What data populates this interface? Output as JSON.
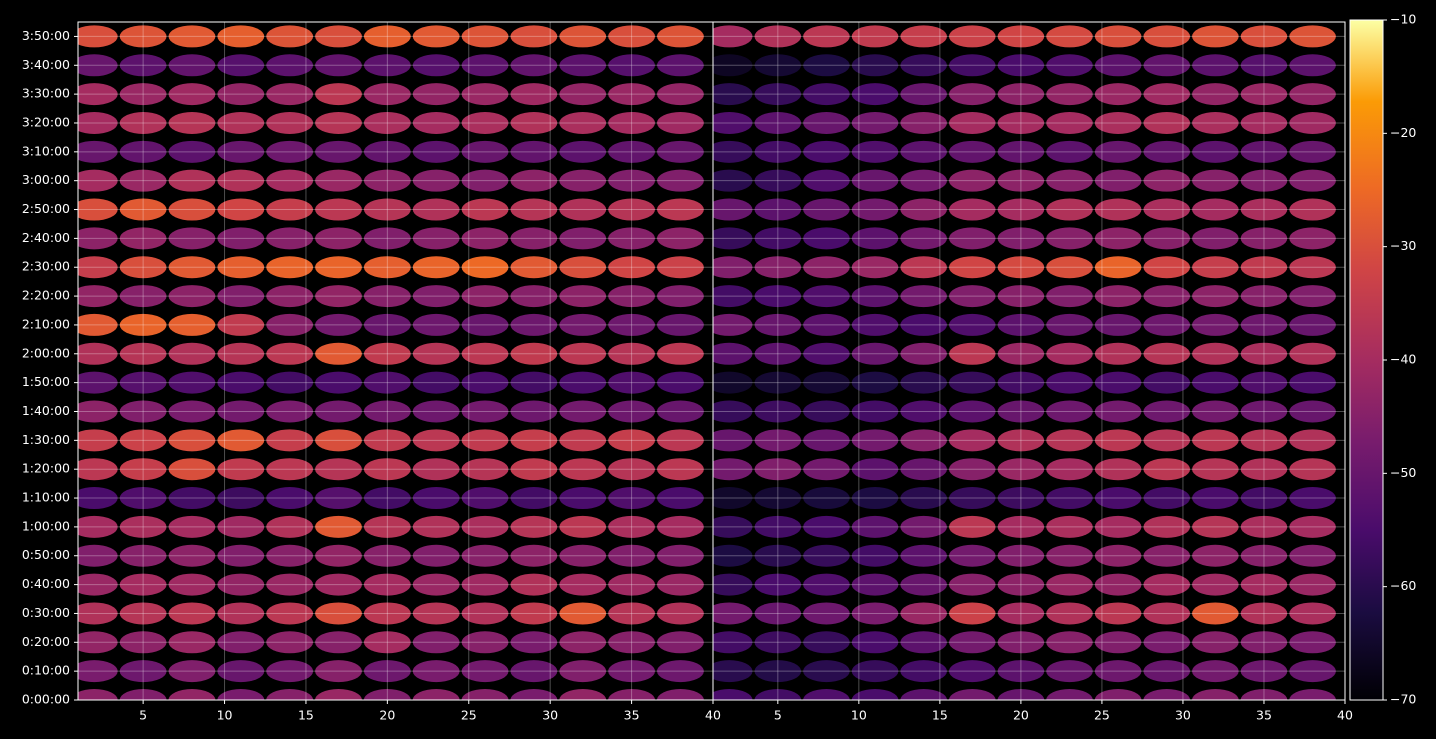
{
  "chart_data": {
    "type": "heatmap",
    "colormap": "inferno",
    "grid": true,
    "vlim": [
      -70,
      -10
    ],
    "cticks": [
      {
        "value": -70,
        "label": "−70"
      },
      {
        "value": -60,
        "label": "−60"
      },
      {
        "value": -50,
        "label": "−50"
      },
      {
        "value": -40,
        "label": "−40"
      },
      {
        "value": -30,
        "label": "−30"
      },
      {
        "value": -20,
        "label": "−20"
      },
      {
        "value": -10,
        "label": "−10"
      }
    ],
    "y": [
      0,
      600,
      1200,
      1800,
      2400,
      3000,
      3600,
      4200,
      4800,
      5400,
      6000,
      6600,
      7200,
      7800,
      8400,
      9000,
      9600,
      10200,
      10800,
      11400,
      12000,
      12600,
      13200,
      13800
    ],
    "ylim": [
      0,
      14100
    ],
    "yticks": [
      {
        "value": 0,
        "label": "0:00:00"
      },
      {
        "value": 600,
        "label": "0:10:00"
      },
      {
        "value": 1200,
        "label": "0:20:00"
      },
      {
        "value": 1800,
        "label": "0:30:00"
      },
      {
        "value": 2400,
        "label": "0:40:00"
      },
      {
        "value": 3000,
        "label": "0:50:00"
      },
      {
        "value": 3600,
        "label": "1:00:00"
      },
      {
        "value": 4200,
        "label": "1:10:00"
      },
      {
        "value": 4800,
        "label": "1:20:00"
      },
      {
        "value": 5400,
        "label": "1:30:00"
      },
      {
        "value": 6000,
        "label": "1:40:00"
      },
      {
        "value": 6600,
        "label": "1:50:00"
      },
      {
        "value": 7200,
        "label": "2:00:00"
      },
      {
        "value": 7800,
        "label": "2:10:00"
      },
      {
        "value": 8400,
        "label": "2:20:00"
      },
      {
        "value": 9000,
        "label": "2:30:00"
      },
      {
        "value": 9600,
        "label": "2:40:00"
      },
      {
        "value": 10200,
        "label": "2:50:00"
      },
      {
        "value": 10800,
        "label": "3:00:00"
      },
      {
        "value": 11400,
        "label": "3:10:00"
      },
      {
        "value": 12000,
        "label": "3:20:00"
      },
      {
        "value": 12600,
        "label": "3:30:00"
      },
      {
        "value": 13200,
        "label": "3:40:00"
      },
      {
        "value": 13800,
        "label": "3:50:00"
      }
    ],
    "panels": [
      {
        "x": [
          2,
          5,
          8,
          11,
          14,
          17,
          20,
          23,
          26,
          29,
          32,
          35,
          38
        ],
        "xlim": [
          1,
          40
        ],
        "xticks": [
          5,
          10,
          15,
          20,
          25,
          30,
          35,
          40
        ],
        "values": [
          [
            -44,
            -46,
            -43,
            -47,
            -45,
            -42,
            -46,
            -44,
            -45,
            -47,
            -43,
            -45,
            -46
          ],
          [
            -47,
            -49,
            -46,
            -50,
            -48,
            -45,
            -49,
            -47,
            -48,
            -50,
            -46,
            -48,
            -49
          ],
          [
            -43,
            -44,
            -42,
            -46,
            -44,
            -45,
            -40,
            -46,
            -45,
            -47,
            -44,
            -45,
            -46
          ],
          [
            -38,
            -37,
            -36,
            -38,
            -36,
            -30,
            -36,
            -37,
            -38,
            -35,
            -28,
            -37,
            -38
          ],
          [
            -42,
            -40,
            -41,
            -43,
            -42,
            -41,
            -40,
            -42,
            -41,
            -38,
            -40,
            -41,
            -42
          ],
          [
            -46,
            -45,
            -44,
            -46,
            -45,
            -43,
            -45,
            -46,
            -45,
            -44,
            -45,
            -46,
            -46
          ],
          [
            -40,
            -39,
            -40,
            -41,
            -38,
            -28,
            -37,
            -38,
            -39,
            -37,
            -36,
            -39,
            -40
          ],
          [
            -55,
            -54,
            -56,
            -57,
            -55,
            -53,
            -56,
            -55,
            -54,
            -56,
            -55,
            -54,
            -55
          ],
          [
            -36,
            -34,
            -30,
            -35,
            -36,
            -37,
            -36,
            -38,
            -37,
            -35,
            -36,
            -37,
            -36
          ],
          [
            -34,
            -33,
            -30,
            -28,
            -34,
            -30,
            -35,
            -36,
            -35,
            -34,
            -35,
            -34,
            -36
          ],
          [
            -44,
            -46,
            -47,
            -48,
            -47,
            -48,
            -48,
            -49,
            -48,
            -49,
            -48,
            -49,
            -50
          ],
          [
            -52,
            -53,
            -54,
            -55,
            -56,
            -55,
            -54,
            -56,
            -55,
            -56,
            -55,
            -54,
            -55
          ],
          [
            -38,
            -37,
            -38,
            -37,
            -36,
            -28,
            -35,
            -37,
            -36,
            -35,
            -36,
            -37,
            -36
          ],
          [
            -28,
            -26,
            -27,
            -35,
            -45,
            -48,
            -50,
            -49,
            -50,
            -49,
            -48,
            -49,
            -50
          ],
          [
            -43,
            -45,
            -44,
            -46,
            -44,
            -43,
            -45,
            -46,
            -44,
            -45,
            -44,
            -45,
            -46
          ],
          [
            -34,
            -30,
            -28,
            -27,
            -26,
            -26,
            -27,
            -26,
            -25,
            -28,
            -30,
            -32,
            -33
          ],
          [
            -44,
            -43,
            -45,
            -46,
            -45,
            -44,
            -46,
            -45,
            -44,
            -45,
            -46,
            -45,
            -44
          ],
          [
            -30,
            -28,
            -30,
            -32,
            -34,
            -36,
            -37,
            -38,
            -36,
            -37,
            -38,
            -37,
            -36
          ],
          [
            -40,
            -42,
            -38,
            -38,
            -40,
            -42,
            -44,
            -45,
            -46,
            -44,
            -45,
            -46,
            -46
          ],
          [
            -50,
            -51,
            -52,
            -50,
            -49,
            -50,
            -51,
            -52,
            -50,
            -51,
            -52,
            -51,
            -50
          ],
          [
            -40,
            -38,
            -37,
            -38,
            -38,
            -37,
            -39,
            -40,
            -39,
            -38,
            -39,
            -40,
            -41
          ],
          [
            -40,
            -42,
            -41,
            -43,
            -42,
            -36,
            -42,
            -43,
            -42,
            -41,
            -43,
            -42,
            -43
          ],
          [
            -50,
            -52,
            -51,
            -53,
            -52,
            -51,
            -52,
            -53,
            -52,
            -51,
            -52,
            -53,
            -52
          ],
          [
            -30,
            -29,
            -28,
            -27,
            -29,
            -30,
            -27,
            -28,
            -29,
            -30,
            -29,
            -30,
            -29
          ]
        ]
      },
      {
        "x": [
          2,
          5,
          8,
          11,
          14,
          17,
          20,
          23,
          26,
          29,
          32,
          35,
          38
        ],
        "xlim": [
          1,
          40
        ],
        "xticks": [
          5,
          10,
          15,
          20,
          25,
          30,
          35,
          40
        ],
        "values": [
          [
            -55,
            -56,
            -54,
            -55,
            -52,
            -48,
            -50,
            -48,
            -46,
            -47,
            -45,
            -46,
            -47
          ],
          [
            -60,
            -61,
            -60,
            -58,
            -56,
            -54,
            -52,
            -50,
            -49,
            -50,
            -48,
            -49,
            -50
          ],
          [
            -56,
            -57,
            -58,
            -55,
            -52,
            -48,
            -46,
            -45,
            -46,
            -47,
            -45,
            -46,
            -47
          ],
          [
            -48,
            -50,
            -49,
            -47,
            -42,
            -33,
            -40,
            -38,
            -36,
            -38,
            -28,
            -38,
            -39
          ],
          [
            -58,
            -55,
            -54,
            -52,
            -50,
            -45,
            -44,
            -42,
            -43,
            -40,
            -41,
            -40,
            -42
          ],
          [
            -62,
            -60,
            -58,
            -56,
            -52,
            -48,
            -46,
            -45,
            -44,
            -45,
            -44,
            -45,
            -46
          ],
          [
            -58,
            -56,
            -55,
            -52,
            -48,
            -36,
            -40,
            -39,
            -40,
            -38,
            -37,
            -39,
            -40
          ],
          [
            -65,
            -64,
            -63,
            -62,
            -60,
            -58,
            -57,
            -56,
            -55,
            -56,
            -55,
            -56,
            -55
          ],
          [
            -48,
            -46,
            -48,
            -52,
            -50,
            -45,
            -42,
            -40,
            -38,
            -36,
            -37,
            -38,
            -37
          ],
          [
            -50,
            -48,
            -50,
            -48,
            -45,
            -40,
            -38,
            -37,
            -36,
            -37,
            -36,
            -37,
            -38
          ],
          [
            -58,
            -57,
            -58,
            -56,
            -54,
            -52,
            -50,
            -49,
            -48,
            -49,
            -48,
            -49,
            -50
          ],
          [
            -65,
            -64,
            -64,
            -62,
            -60,
            -58,
            -56,
            -55,
            -55,
            -56,
            -55,
            -54,
            -55
          ],
          [
            -52,
            -52,
            -54,
            -50,
            -46,
            -36,
            -42,
            -40,
            -38,
            -37,
            -38,
            -39,
            -38
          ],
          [
            -48,
            -50,
            -52,
            -54,
            -55,
            -54,
            -52,
            -50,
            -50,
            -49,
            -48,
            -49,
            -50
          ],
          [
            -56,
            -55,
            -54,
            -52,
            -48,
            -46,
            -45,
            -46,
            -44,
            -45,
            -44,
            -45,
            -46
          ],
          [
            -46,
            -45,
            -44,
            -42,
            -36,
            -32,
            -31,
            -30,
            -26,
            -32,
            -34,
            -35,
            -36
          ],
          [
            -58,
            -56,
            -55,
            -52,
            -48,
            -46,
            -46,
            -45,
            -44,
            -45,
            -46,
            -45,
            -44
          ],
          [
            -50,
            -52,
            -50,
            -48,
            -44,
            -40,
            -40,
            -38,
            -38,
            -39,
            -40,
            -39,
            -38
          ],
          [
            -60,
            -58,
            -54,
            -50,
            -48,
            -44,
            -44,
            -45,
            -46,
            -44,
            -45,
            -46,
            -46
          ],
          [
            -58,
            -56,
            -55,
            -54,
            -52,
            -51,
            -51,
            -52,
            -50,
            -51,
            -52,
            -51,
            -50
          ],
          [
            -54,
            -52,
            -50,
            -48,
            -45,
            -40,
            -40,
            -40,
            -39,
            -38,
            -39,
            -40,
            -41
          ],
          [
            -60,
            -58,
            -56,
            -55,
            -50,
            -45,
            -44,
            -43,
            -42,
            -41,
            -43,
            -42,
            -43
          ],
          [
            -66,
            -64,
            -62,
            -60,
            -58,
            -56,
            -55,
            -54,
            -52,
            -51,
            -52,
            -53,
            -52
          ],
          [
            -40,
            -38,
            -36,
            -35,
            -34,
            -33,
            -32,
            -31,
            -30,
            -30,
            -29,
            -30,
            -29
          ]
        ]
      }
    ]
  }
}
